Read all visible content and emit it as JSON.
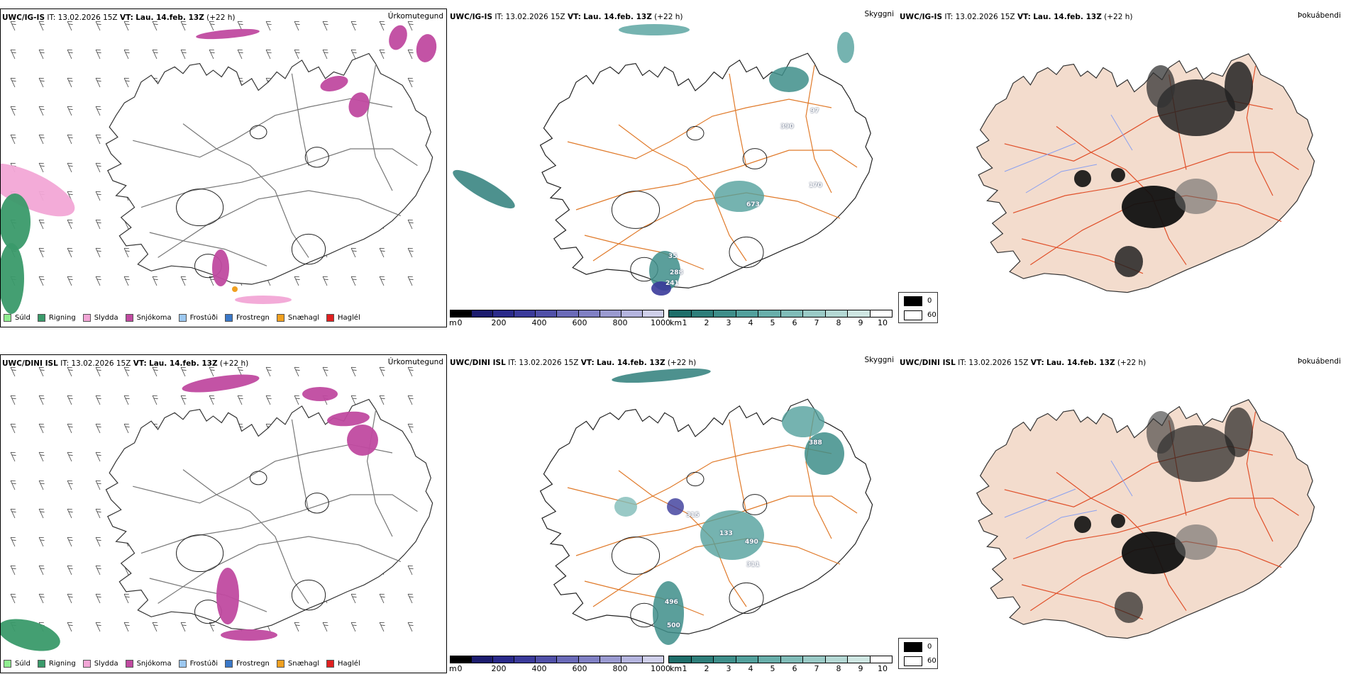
{
  "rows": [
    {
      "model": "UWC/IG-IS",
      "it_label": "IT:",
      "it_value": "13.02.2026 15Z",
      "vt_label": "VT:",
      "vt_value": "Lau. 14.feb. 13Z",
      "lead": "(+22 h)",
      "panels": {
        "precip_type": "Úrkomutegund",
        "visibility": "Skyggni",
        "fog": "Þokuábendi"
      },
      "visibility_labels": [
        "97",
        "390",
        "170",
        "673",
        "35",
        "288",
        "241"
      ]
    },
    {
      "model": "UWC/DINI ISL",
      "it_label": "IT:",
      "it_value": "13.02.2026 15Z",
      "vt_label": "VT:",
      "vt_value": "Lau. 14.feb. 13Z",
      "lead": "(+22 h)",
      "panels": {
        "precip_type": "Úrkomutegund",
        "visibility": "Skyggni",
        "fog": "Þokuábendi"
      },
      "visibility_labels": [
        "388",
        "315",
        "133",
        "490",
        "311",
        "496",
        "500"
      ]
    }
  ],
  "precip_legend": [
    {
      "label": "Súld",
      "color": "#90ee90"
    },
    {
      "label": "Rigning",
      "color": "#3a9a6a"
    },
    {
      "label": "Slydda",
      "color": "#f2a6d6"
    },
    {
      "label": "Snjókoma",
      "color": "#c04aa0"
    },
    {
      "label": "Frostúði",
      "color": "#9cc8f0"
    },
    {
      "label": "Frostregn",
      "color": "#3a78c8"
    },
    {
      "label": "Snæhagl",
      "color": "#f0a020"
    },
    {
      "label": "Haglél",
      "color": "#e02020"
    }
  ],
  "ceiling_scale": {
    "unit": "m",
    "ticks": [
      "0",
      "200",
      "400",
      "600",
      "800",
      "1000"
    ],
    "colors": [
      "#000000",
      "#1c1c6e",
      "#2a2a8a",
      "#3a3a9a",
      "#5050a8",
      "#6a6ab8",
      "#8080c4",
      "#9a9ad0",
      "#b4b4de",
      "#cfcfea"
    ]
  },
  "vis_scale": {
    "unit": "km",
    "ticks": [
      "1",
      "2",
      "3",
      "4",
      "5",
      "6",
      "7",
      "8",
      "9",
      "10"
    ],
    "colors": [
      "#1e6e6a",
      "#2e7e7a",
      "#3e8e8a",
      "#52a09c",
      "#68aeaa",
      "#80bcb8",
      "#9acac6",
      "#b4d8d4",
      "#cee6e2",
      "#ffffff"
    ]
  },
  "fog_legend": {
    "values": [
      "0",
      "60"
    ],
    "colors": [
      "#000000",
      "#ffffff"
    ]
  }
}
